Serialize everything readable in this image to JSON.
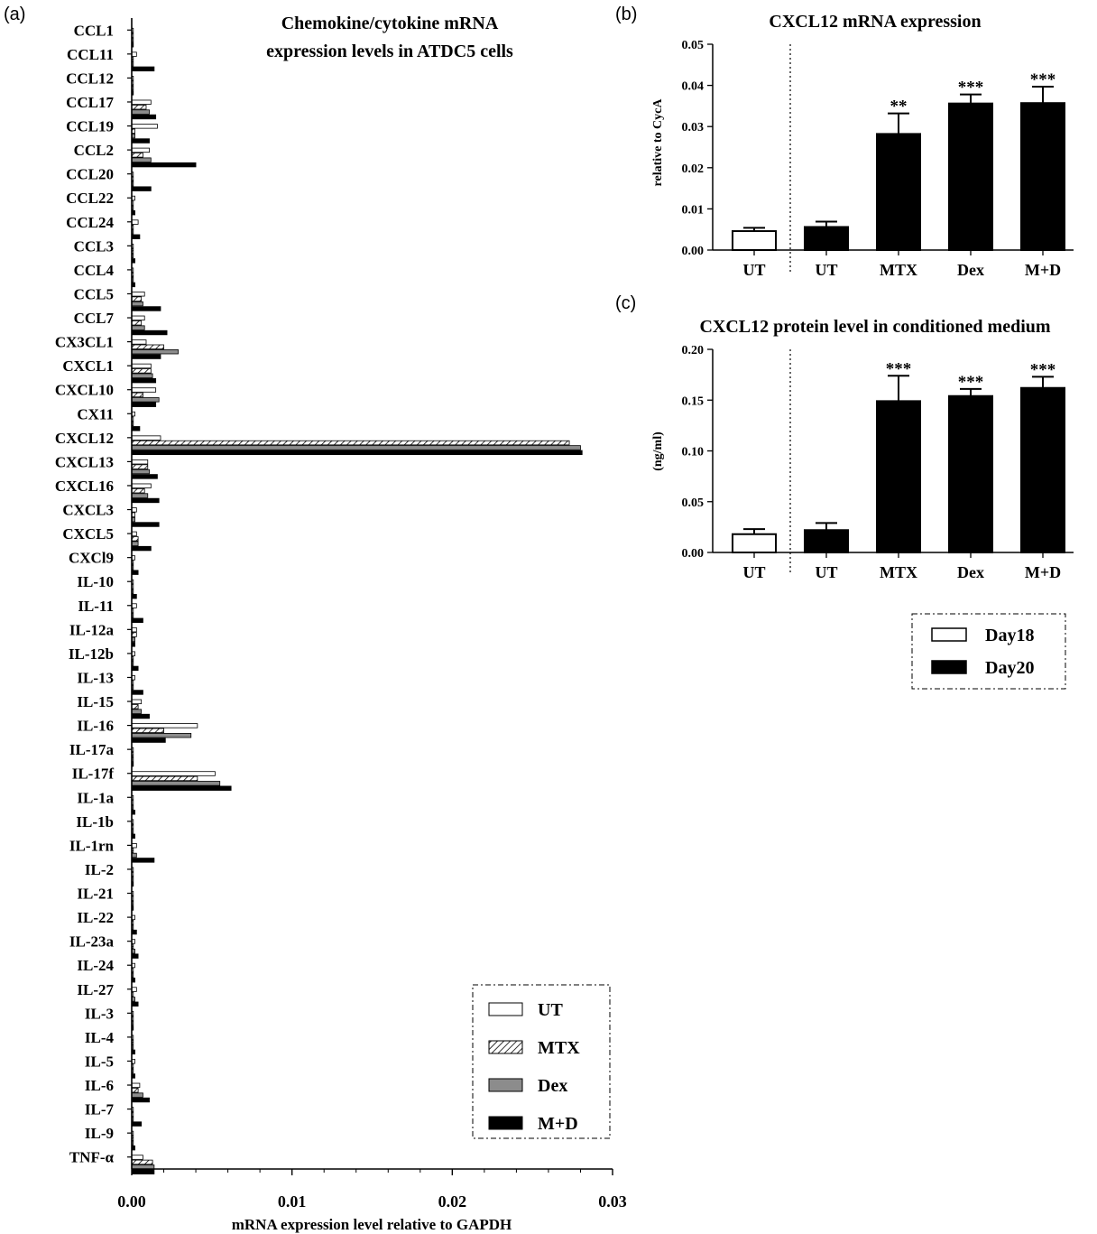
{
  "chart_data": [
    {
      "panel": "(a)",
      "type": "bar",
      "orientation": "horizontal",
      "title_lines": [
        "Chemokine/cytokine mRNA",
        "expression levels in ATDC5 cells"
      ],
      "xlabel": "mRNA expression level relative to GAPDH",
      "xlim": [
        0,
        0.03
      ],
      "xticks": [
        "0.00",
        "0.01",
        "0.02",
        "0.03"
      ],
      "categories": [
        "CCL1",
        "CCL11",
        "CCL12",
        "CCL17",
        "CCL19",
        "CCL2",
        "CCL20",
        "CCL22",
        "CCL24",
        "CCL3",
        "CCL4",
        "CCL5",
        "CCL7",
        "CX3CL1",
        "CXCL1",
        "CXCL10",
        "CX11",
        "CXCL12",
        "CXCL13",
        "CXCL16",
        "CXCL3",
        "CXCL5",
        "CXCl9",
        "IL-10",
        "IL-11",
        "IL-12a",
        "IL-12b",
        "IL-13",
        "IL-15",
        "IL-16",
        "IL-17a",
        "IL-17f",
        "IL-1a",
        "IL-1b",
        "IL-1rn",
        "IL-2",
        "IL-21",
        "IL-22",
        "IL-23a",
        "IL-24",
        "IL-27",
        "IL-3",
        "IL-4",
        "IL-5",
        "IL-6",
        "IL-7",
        "IL-9",
        "TNF-α"
      ],
      "series": [
        {
          "name": "UT",
          "fill": "none",
          "values": [
            0.0001,
            0.0003,
            0.0001,
            0.0012,
            0.0016,
            0.0011,
            0.0001,
            0.0002,
            0.0004,
            0.0001,
            0.0001,
            0.0008,
            0.0008,
            0.0009,
            0.0012,
            0.0015,
            0.0002,
            0.0018,
            0.001,
            0.0012,
            0.0003,
            0.0003,
            0.0002,
            0.0001,
            0.0003,
            0.0003,
            0.0002,
            0.0002,
            0.0006,
            0.0041,
            0.0001,
            0.0052,
            0.0001,
            0.0001,
            0.0003,
            0.0001,
            0.0001,
            0.0002,
            0.0002,
            0.0002,
            0.0003,
            0.0001,
            0.0001,
            0.0002,
            0.0005,
            0.0001,
            0.0001,
            0.0007
          ]
        },
        {
          "name": "MTX",
          "fill": "hatch",
          "values": [
            0.0001,
            0.0001,
            0.0001,
            0.0009,
            0.0002,
            0.0007,
            0.0001,
            0.0001,
            0.0001,
            0.0001,
            0.0001,
            0.0006,
            0.0006,
            0.002,
            0.0012,
            0.0007,
            0.0001,
            0.0273,
            0.001,
            0.0008,
            0.0002,
            0.0004,
            0.0001,
            0.0001,
            0.0001,
            0.0003,
            0.0001,
            0.0001,
            0.0004,
            0.002,
            0.0001,
            0.0041,
            0.0001,
            0.0001,
            0.0001,
            0.0001,
            0.0001,
            0.0001,
            0.0001,
            0.0001,
            0.0001,
            0.0001,
            0.0001,
            0.0001,
            0.0004,
            0.0001,
            0.0001,
            0.0013
          ]
        },
        {
          "name": "Dex",
          "fill": "gray",
          "values": [
            0.0001,
            0.0001,
            0.0001,
            0.0011,
            0.0002,
            0.0012,
            0.0001,
            0.0001,
            0.0001,
            0.0001,
            0.0001,
            0.0007,
            0.0008,
            0.0029,
            0.0013,
            0.0017,
            0.0001,
            0.028,
            0.0011,
            0.001,
            0.0002,
            0.0004,
            0.0001,
            0.0001,
            0.0001,
            0.0002,
            0.0001,
            0.0001,
            0.0006,
            0.0037,
            0.0001,
            0.0055,
            0.0001,
            0.0001,
            0.0003,
            0.0001,
            0.0001,
            0.0001,
            0.0002,
            0.0001,
            0.0002,
            0.0001,
            0.0001,
            0.0001,
            0.0007,
            0.0001,
            0.0001,
            0.0014
          ]
        },
        {
          "name": "M+D",
          "fill": "black",
          "values": [
            0.0001,
            0.0014,
            0.0001,
            0.0015,
            0.0011,
            0.004,
            0.0012,
            0.0002,
            0.0005,
            0.0002,
            0.0002,
            0.0018,
            0.0022,
            0.0018,
            0.0015,
            0.0015,
            0.0005,
            0.0281,
            0.0016,
            0.0017,
            0.0017,
            0.0012,
            0.0004,
            0.0003,
            0.0007,
            0.0002,
            0.0004,
            0.0007,
            0.0011,
            0.0021,
            0.0001,
            0.0062,
            0.0002,
            0.0002,
            0.0014,
            0.0001,
            0.0001,
            0.0003,
            0.0004,
            0.0002,
            0.0004,
            0.0001,
            0.0002,
            0.0002,
            0.0011,
            0.0006,
            0.0002,
            0.0014
          ]
        }
      ],
      "legend": {
        "position": "bottom-right",
        "style": "dash-dot border"
      }
    },
    {
      "panel": "(b)",
      "type": "bar",
      "title": "CXCL12 mRNA expression",
      "ylabel": "relative to CycA",
      "ylim": [
        0,
        0.05
      ],
      "yticks": [
        "0.00",
        "0.01",
        "0.02",
        "0.03",
        "0.04",
        "0.05"
      ],
      "categories": [
        "UT",
        "UT",
        "MTX",
        "Dex",
        "M+D"
      ],
      "values": [
        0.0046,
        0.0056,
        0.0282,
        0.0356,
        0.0357
      ],
      "errors": [
        0.0008,
        0.0013,
        0.005,
        0.0022,
        0.004
      ],
      "groups": [
        "Day18",
        "Day20",
        "Day20",
        "Day20",
        "Day20"
      ],
      "significance": [
        "",
        "",
        "**",
        "***",
        "***"
      ]
    },
    {
      "panel": "(c)",
      "type": "bar",
      "title": "CXCL12 protein level in conditioned medium",
      "ylabel": "(ng/ml)",
      "ylim": [
        0,
        0.2
      ],
      "yticks": [
        "0.00",
        "0.05",
        "0.10",
        "0.15",
        "0.20"
      ],
      "categories": [
        "UT",
        "UT",
        "MTX",
        "Dex",
        "M+D"
      ],
      "values": [
        0.018,
        0.022,
        0.149,
        0.154,
        0.162
      ],
      "errors": [
        0.005,
        0.007,
        0.025,
        0.007,
        0.011
      ],
      "groups": [
        "Day18",
        "Day20",
        "Day20",
        "Day20",
        "Day20"
      ],
      "significance": [
        "",
        "",
        "***",
        "***",
        "***"
      ]
    }
  ],
  "legend_bc": {
    "position": "bottom",
    "items": [
      {
        "name": "Day18",
        "fill": "white"
      },
      {
        "name": "Day20",
        "fill": "black"
      }
    ]
  }
}
